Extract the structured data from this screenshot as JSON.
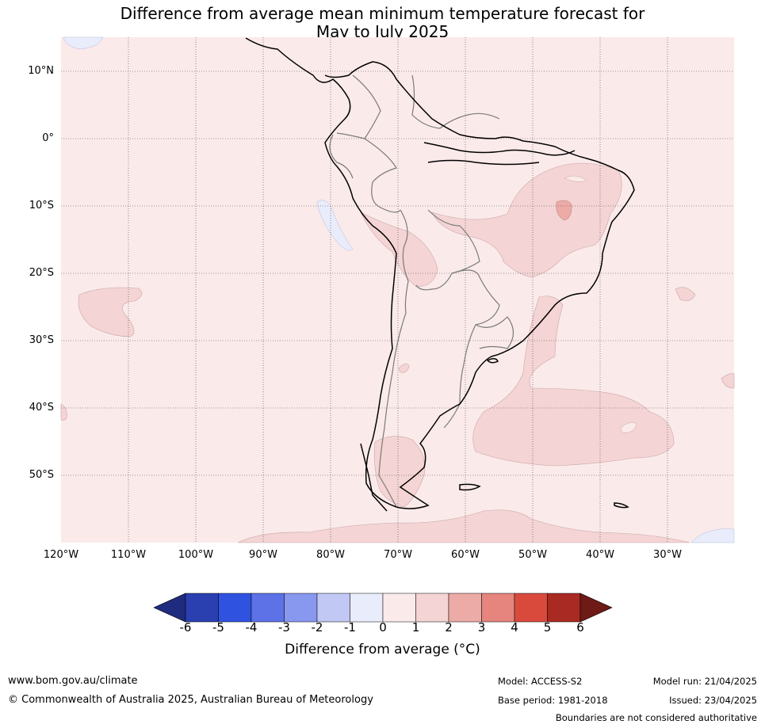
{
  "title_line1": "Difference from average mean minimum temperature forecast for",
  "title_line2": "May to July 2025",
  "map": {
    "lat_labels": [
      "10°N",
      "0°",
      "10°S",
      "20°S",
      "30°S",
      "40°S",
      "50°S"
    ],
    "lon_labels": [
      "120°W",
      "110°W",
      "100°W",
      "90°W",
      "80°W",
      "70°W",
      "60°W",
      "50°W",
      "40°W",
      "30°W"
    ],
    "extent": {
      "lon": [
        -120,
        -20
      ],
      "lat": [
        -60,
        15
      ]
    },
    "grid": true
  },
  "colorbar": {
    "ticks": [
      "-6",
      "-5",
      "-4",
      "-3",
      "-2",
      "-1",
      "0",
      "1",
      "2",
      "3",
      "4",
      "5",
      "6"
    ],
    "colors": [
      "#1f2b7e",
      "#2a3fb0",
      "#3052e0",
      "#5c72e6",
      "#8898ee",
      "#c1c8f4",
      "#e9ecfb",
      "#fbeaea",
      "#f4d4d4",
      "#ecaba7",
      "#e5857e",
      "#d94a3d",
      "#a92a22",
      "#6e1a16"
    ],
    "label": "Difference from average (°C)"
  },
  "footer": {
    "website": "www.bom.gov.au/climate",
    "copyright": "© Commonwealth of Australia 2025, Australian Bureau of Meteorology",
    "model": "Model: ACCESS-S2",
    "base_period": "Base period: 1981-2018",
    "model_run": "Model run: 21/04/2025",
    "issued": "Issued: 23/04/2025",
    "disclaimer": "Boundaries are not considered authoritative"
  }
}
